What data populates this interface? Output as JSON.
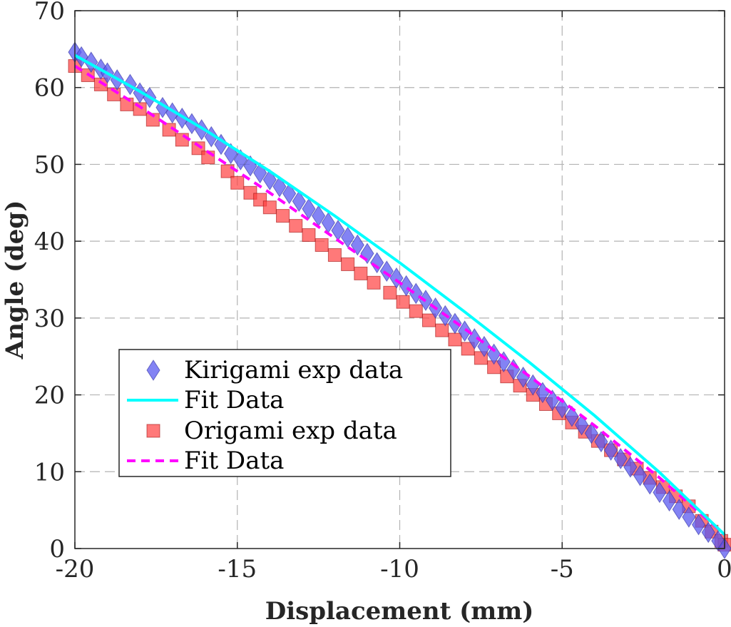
{
  "chart_data": {
    "type": "scatter",
    "xlabel": "Displacement (mm)",
    "ylabel": "Angle (deg)",
    "xlim": [
      -20,
      0
    ],
    "ylim": [
      0,
      70
    ],
    "xticks": [
      "-20",
      "-15",
      "-10",
      "-5",
      "0"
    ],
    "yticks": [
      "0",
      "10",
      "20",
      "30",
      "40",
      "50",
      "60",
      "70"
    ],
    "grid": true,
    "legend_position": "left, lower-middle",
    "series": [
      {
        "name": "Kirigami exp data",
        "kind": "markers",
        "marker": "diamond",
        "color": "#5a5af0",
        "x": [
          -20,
          -19.8,
          -19.5,
          -19.2,
          -19,
          -18.7,
          -18.3,
          -18,
          -17.7,
          -17.3,
          -17,
          -16.7,
          -16.4,
          -16.1,
          -15.8,
          -15.5,
          -15.2,
          -14.9,
          -14.6,
          -14.3,
          -14,
          -13.7,
          -13.4,
          -13.1,
          -12.8,
          -12.5,
          -12.2,
          -11.9,
          -11.6,
          -11.3,
          -11,
          -10.7,
          -10.4,
          -10.1,
          -9.8,
          -9.5,
          -9.2,
          -8.9,
          -8.6,
          -8.3,
          -8,
          -7.7,
          -7.4,
          -7.1,
          -6.8,
          -6.5,
          -6.2,
          -5.9,
          -5.6,
          -5.3,
          -5,
          -4.7,
          -4.4,
          -4.1,
          -3.8,
          -3.5,
          -3.2,
          -2.9,
          -2.6,
          -2.3,
          -2,
          -1.7,
          -1.4,
          -1.1,
          -0.8,
          -0.5,
          -0.2,
          0
        ],
        "y": [
          64.6,
          64,
          63.3,
          62.4,
          61.9,
          61,
          60.4,
          59.3,
          58.7,
          57.4,
          56.7,
          56,
          55.3,
          54.5,
          53.6,
          52.6,
          51.4,
          50.6,
          49.8,
          48.9,
          48,
          47.1,
          46.2,
          45.2,
          44.2,
          43.3,
          42.4,
          41.4,
          40.5,
          39.5,
          38.4,
          37.2,
          36.1,
          35.2,
          34.2,
          33.2,
          32.3,
          31.3,
          30.3,
          29.3,
          28.3,
          27.3,
          26.3,
          25.3,
          24.3,
          23.3,
          22.3,
          21.3,
          20.3,
          19.3,
          18.3,
          17.2,
          16.1,
          15,
          13.9,
          12.8,
          11.7,
          10.6,
          9.5,
          8.4,
          7.3,
          6.2,
          5.1,
          4.1,
          3.1,
          2.1,
          1,
          0
        ]
      },
      {
        "name": "Fit Data",
        "kind": "line",
        "style": "solid",
        "color": "#00ffff",
        "x": [
          -20,
          -18,
          -16,
          -14,
          -12,
          -10,
          -8,
          -6,
          -4,
          -2,
          0
        ],
        "y": [
          64.2,
          59.5,
          54.5,
          49.1,
          43.3,
          37.2,
          30.8,
          24.2,
          17.3,
          9.9,
          1.8
        ]
      },
      {
        "name": "Origami exp data",
        "kind": "markers",
        "marker": "square",
        "color": "#ff4040",
        "x": [
          -20,
          -19.6,
          -19.2,
          -18.8,
          -18.4,
          -18,
          -17.6,
          -17.1,
          -16.7,
          -16.2,
          -15.9,
          -15.3,
          -15,
          -14.6,
          -14.3,
          -14,
          -13.6,
          -13.2,
          -12.8,
          -12.4,
          -12,
          -11.6,
          -11.2,
          -10.8,
          -10.3,
          -9.9,
          -9.5,
          -9.1,
          -8.7,
          -8.3,
          -7.9,
          -7.5,
          -7.1,
          -6.7,
          -6.3,
          -5.9,
          -5.5,
          -5.1,
          -4.7,
          -4.3,
          -3.9,
          -3.5,
          -3.1,
          -2.7,
          -2.3,
          -1.9,
          -1.5,
          -1.1,
          -0.7,
          -0.4,
          -0.1,
          0
        ],
        "y": [
          62.8,
          61.6,
          60.4,
          59.1,
          57.8,
          57.2,
          55.8,
          54.5,
          53.2,
          52.1,
          50.9,
          49.1,
          47.6,
          46.3,
          45.4,
          44.4,
          43.3,
          42,
          40.8,
          39.5,
          38.2,
          37,
          35.8,
          34.6,
          33.3,
          32.1,
          30.9,
          29.7,
          28.4,
          27.2,
          26,
          24.8,
          23.6,
          22.4,
          21.2,
          20,
          18.8,
          17.6,
          16.4,
          15.2,
          14,
          12.8,
          11.6,
          10.4,
          9.2,
          8,
          6.8,
          5.5,
          3.6,
          2.2,
          1,
          0.5
        ]
      },
      {
        "name": "Fit Data",
        "kind": "line",
        "style": "dashed",
        "color": "#ff00ff",
        "x": [
          -20,
          -18,
          -16,
          -14,
          -12,
          -10,
          -8,
          -6,
          -4,
          -2,
          0
        ],
        "y": [
          62.8,
          57.5,
          51.9,
          46.3,
          40.4,
          34.6,
          28.6,
          22.4,
          16.0,
          9.2,
          1.8
        ]
      }
    ]
  }
}
